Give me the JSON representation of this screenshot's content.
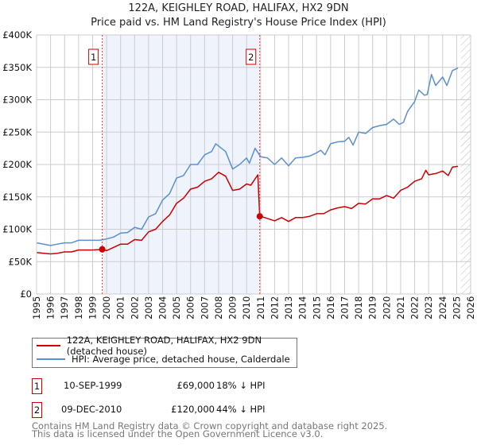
{
  "title": "122A, KEIGHLEY ROAD, HALIFAX, HX2 9DN",
  "subtitle": "Price paid vs. HM Land Registry's House Price Index (HPI)",
  "colors": {
    "property": "#cc0000",
    "hpi": "#5b8fd0",
    "shade": "#eef3fc"
  },
  "chart_data": {
    "type": "line",
    "title": "122A, KEIGHLEY ROAD, HALIFAX, HX2 9DN",
    "xlim": [
      1995,
      2026
    ],
    "ylim": [
      0,
      400000
    ],
    "x_ticks": [
      "1995",
      "1996",
      "1997",
      "1998",
      "1999",
      "2000",
      "2001",
      "2002",
      "2003",
      "2004",
      "2005",
      "2006",
      "2007",
      "2008",
      "2009",
      "2010",
      "2011",
      "2012",
      "2013",
      "2014",
      "2015",
      "2016",
      "2017",
      "2018",
      "2019",
      "2020",
      "2021",
      "2022",
      "2023",
      "2024",
      "2025",
      "2026"
    ],
    "y_ticks": [
      {
        "v": 0,
        "label": "£0"
      },
      {
        "v": 50000,
        "label": "£50K"
      },
      {
        "v": 100000,
        "label": "£100K"
      },
      {
        "v": 150000,
        "label": "£150K"
      },
      {
        "v": 200000,
        "label": "£200K"
      },
      {
        "v": 250000,
        "label": "£250K"
      },
      {
        "v": 300000,
        "label": "£300K"
      },
      {
        "v": 350000,
        "label": "£350K"
      },
      {
        "v": 400000,
        "label": "£400K"
      }
    ],
    "grid": true,
    "shaded_range": [
      1999.69,
      2010.94
    ],
    "hatched_from": 2025.3,
    "series": [
      {
        "name": "122A, KEIGHLEY ROAD, HALIFAX, HX2 9DN (detached house)",
        "x": [
          1995,
          1995.5,
          1996,
          1996.5,
          1997,
          1997.5,
          1998,
          1998.5,
          1999,
          1999.69,
          2000,
          2000.5,
          2001,
          2001.5,
          2002,
          2002.5,
          2003,
          2003.5,
          2004,
          2004.5,
          2005,
          2005.5,
          2006,
          2006.5,
          2007,
          2007.5,
          2008,
          2008.5,
          2009,
          2009.5,
          2010,
          2010.3,
          2010.8,
          2010.94,
          2011.3,
          2012,
          2012.5,
          2013,
          2013.5,
          2014,
          2014.5,
          2015,
          2015.5,
          2016,
          2016.5,
          2017,
          2017.5,
          2018,
          2018.5,
          2019,
          2019.5,
          2020,
          2020.5,
          2021,
          2021.5,
          2022,
          2022.5,
          2022.8,
          2023,
          2023.5,
          2024,
          2024.4,
          2024.7,
          2025.1
        ],
        "values": [
          64000,
          63000,
          62000,
          63000,
          65000,
          65000,
          68000,
          68000,
          68000,
          69000,
          67000,
          72000,
          77000,
          77000,
          84000,
          83000,
          96000,
          100000,
          112000,
          122000,
          140000,
          148000,
          162000,
          165000,
          174000,
          178000,
          188000,
          182000,
          160000,
          162000,
          170000,
          168000,
          184000,
          120000,
          118000,
          113000,
          118000,
          112000,
          118000,
          118000,
          120000,
          124000,
          124000,
          130000,
          133000,
          135000,
          132000,
          140000,
          139000,
          147000,
          147000,
          152000,
          148000,
          160000,
          165000,
          174000,
          178000,
          191000,
          184000,
          186000,
          190000,
          183000,
          196000,
          197000
        ]
      },
      {
        "name": "HPI: Average price, detached house, Calderdale",
        "x": [
          1995,
          1995.5,
          1996,
          1996.5,
          1997,
          1997.5,
          1998,
          1998.5,
          1999,
          1999.5,
          2000,
          2000.5,
          2001,
          2001.5,
          2002,
          2002.5,
          2003,
          2003.5,
          2004,
          2004.5,
          2005,
          2005.5,
          2006,
          2006.5,
          2007,
          2007.5,
          2007.8,
          2008.2,
          2008.5,
          2009,
          2009.5,
          2010,
          2010.2,
          2010.6,
          2011,
          2011.5,
          2012,
          2012.5,
          2013,
          2013.5,
          2014,
          2014.5,
          2015,
          2015.3,
          2015.6,
          2016,
          2016.5,
          2017,
          2017.3,
          2017.6,
          2018,
          2018.5,
          2019,
          2019.5,
          2020,
          2020.5,
          2020.9,
          2021.2,
          2021.5,
          2022,
          2022.3,
          2022.7,
          2022.9,
          2023.2,
          2023.5,
          2023.8,
          2024,
          2024.3,
          2024.7,
          2025.1
        ],
        "values": [
          79000,
          77000,
          75000,
          77000,
          79000,
          79000,
          83000,
          83000,
          83000,
          83000,
          85000,
          88000,
          94000,
          95000,
          103000,
          100000,
          119000,
          124000,
          145000,
          155000,
          179000,
          183000,
          200000,
          200000,
          215000,
          220000,
          232000,
          225000,
          220000,
          193000,
          200000,
          210000,
          202000,
          225000,
          212000,
          210000,
          200000,
          210000,
          198000,
          210000,
          211000,
          213000,
          218000,
          222000,
          215000,
          232000,
          235000,
          236000,
          242000,
          230000,
          250000,
          248000,
          257000,
          260000,
          262000,
          270000,
          262000,
          265000,
          282000,
          297000,
          315000,
          307000,
          308000,
          339000,
          322000,
          330000,
          335000,
          322000,
          345000,
          349000
        ]
      }
    ],
    "markers": [
      {
        "id": "1",
        "x": 1999.69,
        "value": 69000
      },
      {
        "id": "2",
        "x": 2010.94,
        "value": 120000
      }
    ]
  },
  "legend": {
    "property": "122A, KEIGHLEY ROAD, HALIFAX, HX2 9DN (detached house)",
    "hpi": "HPI: Average price, detached house, Calderdale"
  },
  "transactions": [
    {
      "id": "1",
      "date": "10-SEP-1999",
      "price": "£69,000",
      "hpi": "18% ↓ HPI"
    },
    {
      "id": "2",
      "date": "09-DEC-2010",
      "price": "£120,000",
      "hpi": "44% ↓ HPI"
    }
  ],
  "footer": [
    "Contains HM Land Registry data © Crown copyright and database right 2025.",
    "This data is licensed under the Open Government Licence v3.0."
  ]
}
